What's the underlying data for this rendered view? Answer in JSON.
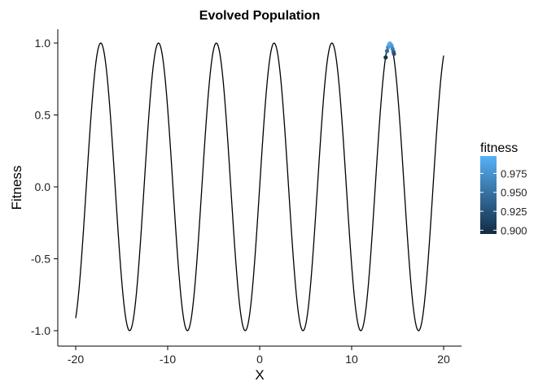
{
  "chart_data": {
    "type": "line",
    "title": "Evolved Population",
    "xlabel": "X",
    "ylabel": "Fitness",
    "xlim": [
      -20,
      20
    ],
    "ylim": [
      -1.0,
      1.0
    ],
    "x_ticks": [
      -20,
      -10,
      0,
      10,
      20
    ],
    "x_tick_labels": [
      "-20",
      "-10",
      "0",
      "10",
      "20"
    ],
    "y_ticks": [
      -1.0,
      -0.5,
      0.0,
      0.5,
      1.0
    ],
    "y_tick_labels": [
      "-1.0",
      "-0.5",
      "0.0",
      "0.5",
      "1.0"
    ],
    "grid": false,
    "curve": {
      "function": "sin",
      "x_start": -20,
      "x_end": 20,
      "color": "#000000"
    },
    "points": {
      "x": [
        13.7,
        13.85,
        13.95,
        14.05,
        14.1,
        14.15,
        14.25,
        14.35,
        14.45,
        14.55,
        14.6
      ],
      "y": [
        0.9,
        0.945,
        0.97,
        0.985,
        0.993,
        0.997,
        0.992,
        0.98,
        0.96,
        0.94,
        0.925
      ],
      "fitness": [
        0.9,
        0.945,
        0.97,
        0.985,
        0.993,
        0.997,
        0.992,
        0.98,
        0.96,
        0.94,
        0.925
      ]
    },
    "legend": {
      "title": "fitness",
      "position": "right",
      "ticks": [
        0.975,
        0.95,
        0.925,
        0.9
      ],
      "tick_labels": [
        "0.975",
        "0.950",
        "0.925",
        "0.900"
      ],
      "range": [
        0.895,
        0.998
      ],
      "color_low": "#132B43",
      "color_high": "#56B1F7"
    }
  }
}
